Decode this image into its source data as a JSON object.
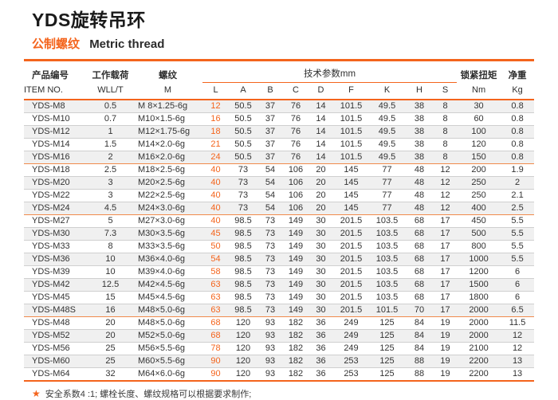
{
  "page": {
    "title": "YDS旋转吊环",
    "subtitle_cn": "公制螺纹",
    "subtitle_en": "Metric thread",
    "footnote_star": "★",
    "footnote": "安全系数4 :1; 螺栓长度、螺纹规格可以根据要求制作;"
  },
  "colors": {
    "accent_orange": "#F4641C",
    "stripe_gray": "#F0F0F0",
    "row_border_gray": "#CFCFCF",
    "text_dark": "#333333"
  },
  "table": {
    "header": {
      "item_cn": "产品编号",
      "item_en": "ITEM NO.",
      "wll_cn": "工作载荷",
      "wll_en": "WLL/T",
      "thread_cn": "螺纹",
      "thread_en": "M",
      "tech_params": "技术参数mm",
      "dim_letters": [
        "L",
        "A",
        "B",
        "C",
        "D",
        "F",
        "K",
        "H",
        "S"
      ],
      "torque_cn": "锁紧扭矩",
      "torque_unit": "Nm",
      "weight_cn": "净重",
      "weight_unit": "Kg"
    },
    "rows": [
      {
        "item": "YDS-M8",
        "wll": "0.5",
        "thread": "M 8×1.25-6g",
        "dims": [
          "12",
          "50.5",
          "37",
          "76",
          "14",
          "101.5",
          "49.5",
          "38",
          "8"
        ],
        "torque": "30",
        "weight": "0.8",
        "group_end": false
      },
      {
        "item": "YDS-M10",
        "wll": "0.7",
        "thread": "M10×1.5-6g",
        "dims": [
          "16",
          "50.5",
          "37",
          "76",
          "14",
          "101.5",
          "49.5",
          "38",
          "8"
        ],
        "torque": "60",
        "weight": "0.8",
        "group_end": false
      },
      {
        "item": "YDS-M12",
        "wll": "1",
        "thread": "M12×1.75-6g",
        "dims": [
          "18",
          "50.5",
          "37",
          "76",
          "14",
          "101.5",
          "49.5",
          "38",
          "8"
        ],
        "torque": "100",
        "weight": "0.8",
        "group_end": false
      },
      {
        "item": "YDS-M14",
        "wll": "1.5",
        "thread": "M14×2.0-6g",
        "dims": [
          "21",
          "50.5",
          "37",
          "76",
          "14",
          "101.5",
          "49.5",
          "38",
          "8"
        ],
        "torque": "120",
        "weight": "0.8",
        "group_end": false
      },
      {
        "item": "YDS-M16",
        "wll": "2",
        "thread": "M16×2.0-6g",
        "dims": [
          "24",
          "50.5",
          "37",
          "76",
          "14",
          "101.5",
          "49.5",
          "38",
          "8"
        ],
        "torque": "150",
        "weight": "0.8",
        "group_end": true
      },
      {
        "item": "YDS-M18",
        "wll": "2.5",
        "thread": "M18×2.5-6g",
        "dims": [
          "40",
          "73",
          "54",
          "106",
          "20",
          "145",
          "77",
          "48",
          "12"
        ],
        "torque": "200",
        "weight": "1.9",
        "group_end": false
      },
      {
        "item": "YDS-M20",
        "wll": "3",
        "thread": "M20×2.5-6g",
        "dims": [
          "40",
          "73",
          "54",
          "106",
          "20",
          "145",
          "77",
          "48",
          "12"
        ],
        "torque": "250",
        "weight": "2",
        "group_end": false
      },
      {
        "item": "YDS-M22",
        "wll": "3",
        "thread": "M22×2.5-6g",
        "dims": [
          "40",
          "73",
          "54",
          "106",
          "20",
          "145",
          "77",
          "48",
          "12"
        ],
        "torque": "250",
        "weight": "2.1",
        "group_end": false
      },
      {
        "item": "YDS-M24",
        "wll": "4.5",
        "thread": "M24×3.0-6g",
        "dims": [
          "40",
          "73",
          "54",
          "106",
          "20",
          "145",
          "77",
          "48",
          "12"
        ],
        "torque": "400",
        "weight": "2.5",
        "group_end": true
      },
      {
        "item": "YDS-M27",
        "wll": "5",
        "thread": "M27×3.0-6g",
        "dims": [
          "40",
          "98.5",
          "73",
          "149",
          "30",
          "201.5",
          "103.5",
          "68",
          "17"
        ],
        "torque": "450",
        "weight": "5.5",
        "group_end": false
      },
      {
        "item": "YDS-M30",
        "wll": "7.3",
        "thread": "M30×3.5-6g",
        "dims": [
          "45",
          "98.5",
          "73",
          "149",
          "30",
          "201.5",
          "103.5",
          "68",
          "17"
        ],
        "torque": "500",
        "weight": "5.5",
        "group_end": false
      },
      {
        "item": "YDS-M33",
        "wll": "8",
        "thread": "M33×3.5-6g",
        "dims": [
          "50",
          "98.5",
          "73",
          "149",
          "30",
          "201.5",
          "103.5",
          "68",
          "17"
        ],
        "torque": "800",
        "weight": "5.5",
        "group_end": false
      },
      {
        "item": "YDS-M36",
        "wll": "10",
        "thread": "M36×4.0-6g",
        "dims": [
          "54",
          "98.5",
          "73",
          "149",
          "30",
          "201.5",
          "103.5",
          "68",
          "17"
        ],
        "torque": "1000",
        "weight": "5.5",
        "group_end": false
      },
      {
        "item": "YDS-M39",
        "wll": "10",
        "thread": "M39×4.0-6g",
        "dims": [
          "58",
          "98.5",
          "73",
          "149",
          "30",
          "201.5",
          "103.5",
          "68",
          "17"
        ],
        "torque": "1200",
        "weight": "6",
        "group_end": false
      },
      {
        "item": "YDS-M42",
        "wll": "12.5",
        "thread": "M42×4.5-6g",
        "dims": [
          "63",
          "98.5",
          "73",
          "149",
          "30",
          "201.5",
          "103.5",
          "68",
          "17"
        ],
        "torque": "1500",
        "weight": "6",
        "group_end": false
      },
      {
        "item": "YDS-M45",
        "wll": "15",
        "thread": "M45×4.5-6g",
        "dims": [
          "63",
          "98.5",
          "73",
          "149",
          "30",
          "201.5",
          "103.5",
          "68",
          "17"
        ],
        "torque": "1800",
        "weight": "6",
        "group_end": false
      },
      {
        "item": "YDS-M48S",
        "wll": "16",
        "thread": "M48×5.0-6g",
        "dims": [
          "63",
          "98.5",
          "73",
          "149",
          "30",
          "201.5",
          "101.5",
          "70",
          "17"
        ],
        "torque": "2000",
        "weight": "6.5",
        "group_end": true
      },
      {
        "item": "YDS-M48",
        "wll": "20",
        "thread": "M48×5.0-6g",
        "dims": [
          "68",
          "120",
          "93",
          "182",
          "36",
          "249",
          "125",
          "84",
          "19"
        ],
        "torque": "2000",
        "weight": "11.5",
        "group_end": false
      },
      {
        "item": "YDS-M52",
        "wll": "20",
        "thread": "M52×5.0-6g",
        "dims": [
          "68",
          "120",
          "93",
          "182",
          "36",
          "249",
          "125",
          "84",
          "19"
        ],
        "torque": "2000",
        "weight": "12",
        "group_end": false
      },
      {
        "item": "YDS-M56",
        "wll": "25",
        "thread": "M56×5.5-6g",
        "dims": [
          "78",
          "120",
          "93",
          "182",
          "36",
          "249",
          "125",
          "84",
          "19"
        ],
        "torque": "2100",
        "weight": "12",
        "group_end": false
      },
      {
        "item": "YDS-M60",
        "wll": "25",
        "thread": "M60×5.5-6g",
        "dims": [
          "90",
          "120",
          "93",
          "182",
          "36",
          "253",
          "125",
          "88",
          "19"
        ],
        "torque": "2200",
        "weight": "13",
        "group_end": false
      },
      {
        "item": "YDS-M64",
        "wll": "32",
        "thread": "M64×6.0-6g",
        "dims": [
          "90",
          "120",
          "93",
          "182",
          "36",
          "253",
          "125",
          "88",
          "19"
        ],
        "torque": "2200",
        "weight": "13",
        "group_end": false
      }
    ]
  }
}
